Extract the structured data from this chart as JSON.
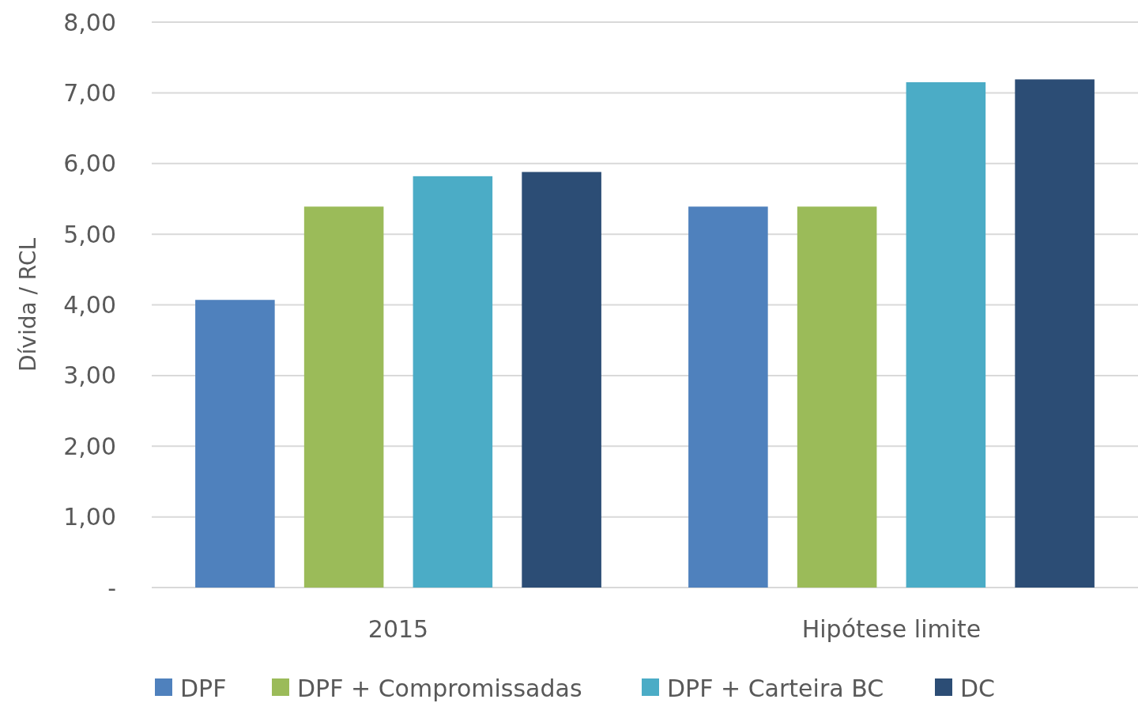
{
  "chart_data": {
    "type": "bar",
    "ylabel": "Dívida / RCL",
    "categories": [
      "2015",
      "Hipótese limite"
    ],
    "series": [
      {
        "name": "DPF",
        "color": "#4f81bd",
        "values": [
          4.07,
          5.39
        ]
      },
      {
        "name": "DPF + Compromissadas",
        "color": "#9bbb59",
        "values": [
          5.39,
          5.39
        ]
      },
      {
        "name": "DPF + Carteira BC",
        "color": "#4bacc6",
        "values": [
          5.82,
          7.15
        ]
      },
      {
        "name": "DC",
        "color": "#2c4d75",
        "values": [
          5.88,
          7.19
        ]
      }
    ],
    "ylim": [
      0,
      8
    ],
    "yticks": [
      {
        "value": 0,
        "label": "-"
      },
      {
        "value": 1,
        "label": "1,00"
      },
      {
        "value": 2,
        "label": "2,00"
      },
      {
        "value": 3,
        "label": "3,00"
      },
      {
        "value": 4,
        "label": "4,00"
      },
      {
        "value": 5,
        "label": "5,00"
      },
      {
        "value": 6,
        "label": "6,00"
      },
      {
        "value": 7,
        "label": "7,00"
      },
      {
        "value": 8,
        "label": "8,00"
      }
    ],
    "grid": "y",
    "legend": "bottom"
  }
}
